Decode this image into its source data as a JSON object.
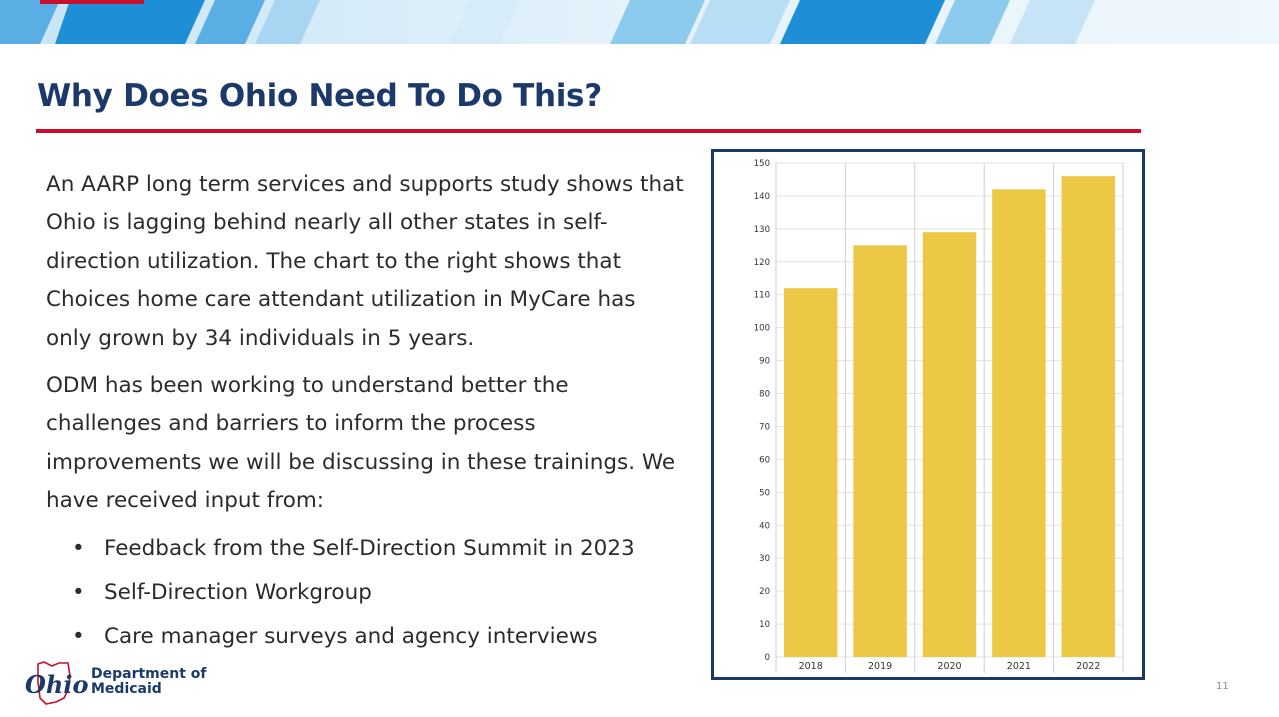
{
  "slide": {
    "title": "Why Does Ohio Need To Do This?",
    "paragraphs": [
      "An AARP long term services and supports study shows that Ohio is lagging behind nearly all other states in self-direction utilization. The chart to the right shows that Choices home care attendant utilization in MyCare has only grown by 34 individuals in 5 years.",
      "ODM has been working to understand better the challenges and barriers to inform the process improvements we will be discussing in these trainings. We have received input from:"
    ],
    "bullets": [
      "Feedback from the Self-Direction Summit in 2023",
      "Self-Direction Workgroup",
      "Care manager surveys and agency interviews"
    ],
    "bullet_char": "•",
    "logo": {
      "mark_text": "Ohio",
      "line1": "Department of",
      "line2": "Medicaid"
    },
    "page_number": "11"
  },
  "colors": {
    "title": "#1b3a6b",
    "rule": "#c8102e",
    "bar": "#ebc945",
    "frame": "#1b3a6b",
    "banner_dark": "#1e8fd6",
    "banner_light": "#8ccbee"
  },
  "chart_data": {
    "type": "bar",
    "categories": [
      "2018",
      "2019",
      "2020",
      "2021",
      "2022"
    ],
    "values": [
      112,
      125,
      129,
      142,
      146
    ],
    "ylim": [
      0,
      150
    ],
    "yticks": [
      0,
      10,
      20,
      30,
      40,
      50,
      60,
      70,
      80,
      90,
      100,
      110,
      120,
      130,
      140,
      150
    ],
    "grid": true,
    "title": "",
    "xlabel": "",
    "ylabel": ""
  }
}
